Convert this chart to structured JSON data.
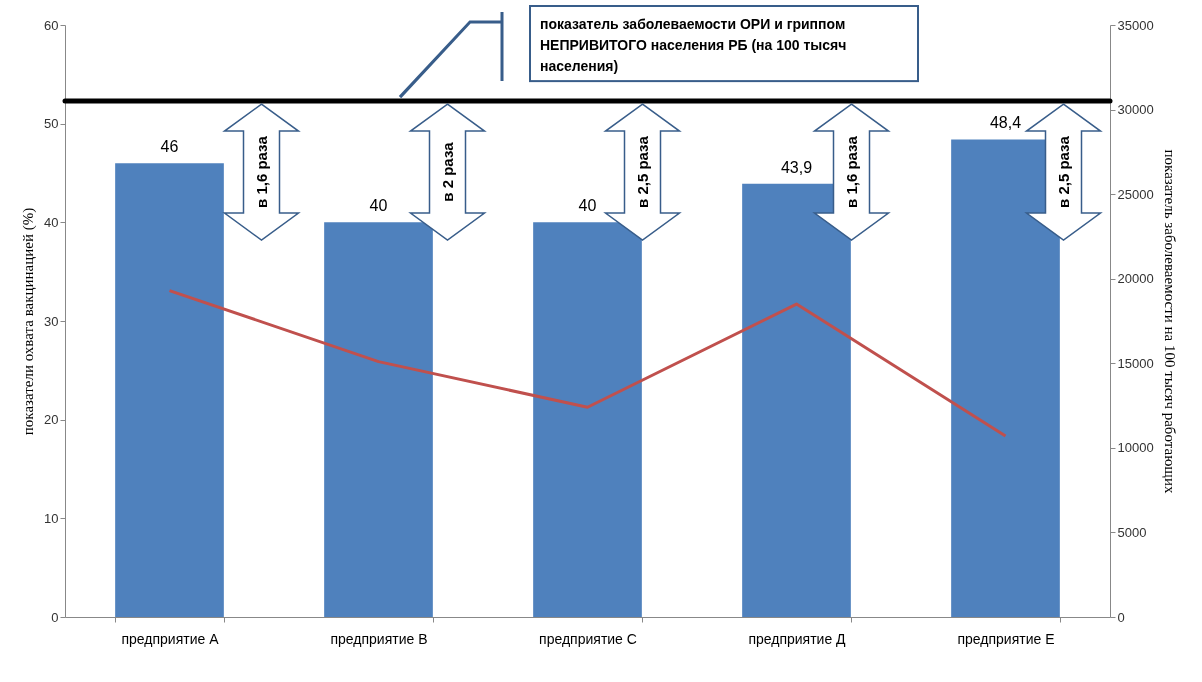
{
  "chart_data": {
    "type": "bar",
    "categories": [
      "предприятие А",
      "предприятие В",
      "предприятие С",
      "предприятие Д",
      "предприятие Е"
    ],
    "series": [
      {
        "color": "#4f81bd",
        "values": [
          46,
          40,
          40,
          43.9,
          48.4
        ],
        "value_labels": [
          "46",
          "40",
          "40",
          "43,9",
          "48,4"
        ]
      },
      {
        "type": "line",
        "axis": "y2",
        "color": "#c0504d",
        "values": [
          19300,
          15100,
          12400,
          18500,
          10700
        ]
      }
    ],
    "ylabel": "показатели охвата вакцинацией  (%)",
    "y2label": "показатель заболеваемости на 100 тысяч работающих",
    "ylim": [
      0,
      60
    ],
    "yticks": [
      0,
      10,
      20,
      30,
      40,
      50,
      60
    ],
    "y2lim": [
      0,
      35000
    ],
    "y2ticks": [
      0,
      5000,
      10000,
      15000,
      20000,
      25000,
      30000,
      35000
    ],
    "ref_lines": [
      {
        "axis": "y2",
        "value": 30500,
        "color": "#000000",
        "label": "показатель заболеваемости ОРИ и гриппом НЕПРИВИТОГО населения РБ (на 100 тысяч населения)"
      }
    ],
    "annotations": [
      "в 1,6 раза",
      "в 2 раза",
      "в 2,5 раза",
      "в 1,6 раза",
      "в 2,5 раза"
    ],
    "grid": false
  }
}
